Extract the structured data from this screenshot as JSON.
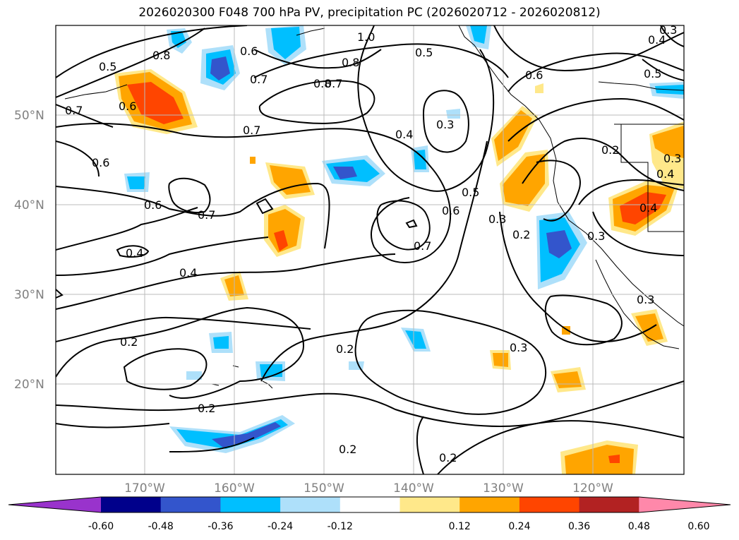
{
  "title": "2026020300 F048 700 hPa PV, precipitation PC (2026020712 - 2026020812)",
  "map": {
    "lat_labels": [
      {
        "text": "50°N",
        "lat": 50
      },
      {
        "text": "40°N",
        "lat": 40
      },
      {
        "text": "30°N",
        "lat": 30
      },
      {
        "text": "20°N",
        "lat": 20
      }
    ],
    "lon_labels": [
      {
        "text": "170°W",
        "lon": -170
      },
      {
        "text": "160°W",
        "lon": -160
      },
      {
        "text": "150°W",
        "lon": -150
      },
      {
        "text": "140°W",
        "lon": -140
      },
      {
        "text": "130°W",
        "lon": -130
      },
      {
        "text": "120°W",
        "lon": -120
      }
    ],
    "contour_labels": [
      "0.5",
      "0.8",
      "0.6",
      "1.0",
      "0.8",
      "0.5",
      "0.6",
      "0.4",
      "0.5",
      "0.3",
      "0.7",
      "0.7",
      "0.6",
      "0.7",
      "0.8",
      "0.4",
      "0.3",
      "0.2",
      "0.6",
      "0.6",
      "0.7",
      "0.5",
      "0.6",
      "0.7",
      "0.3",
      "0.2",
      "0.4",
      "0.4",
      "0.4",
      "0.3",
      "0.2",
      "0.2",
      "0.3",
      "0.3",
      "0.2",
      "0.2",
      "0.2",
      "0.7",
      "0.4",
      "0.3"
    ]
  },
  "colorbar": {
    "colors": [
      "#9933cc",
      "#00008b",
      "#3355cc",
      "#00bfff",
      "#aee0fa",
      "#ffffff",
      "#ffe88a",
      "#ffa500",
      "#ff4500",
      "#b22222",
      "#ff88aa"
    ],
    "ticks": [
      "-0.60",
      "-0.48",
      "-0.36",
      "-0.24",
      "-0.12",
      "0.12",
      "0.24",
      "0.36",
      "0.48",
      "0.60"
    ]
  }
}
